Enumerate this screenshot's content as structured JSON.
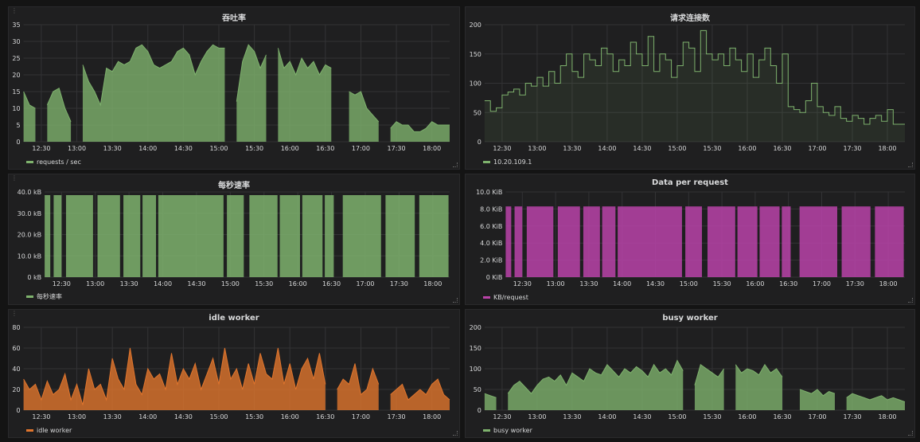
{
  "colors": {
    "green": "#7eb26d",
    "orange": "#e0752d",
    "purple": "#ba43a9"
  },
  "panels": [
    {
      "id": "p1",
      "title": "吞吐率",
      "legend": "requests / sec",
      "color": "#7eb26d",
      "type": "area",
      "yticks": [
        "0",
        "5",
        "10",
        "15",
        "20",
        "25",
        "30",
        "35"
      ],
      "ylim": [
        0,
        35
      ],
      "xticks": [
        "12:30",
        "13:00",
        "13:30",
        "14:00",
        "14:30",
        "15:00",
        "15:30",
        "16:00",
        "16:30",
        "17:00",
        "17:30",
        "18:00"
      ],
      "xrange": [
        "12:15",
        "18:15"
      ],
      "start": "12:15",
      "step_min": 5,
      "values": [
        15,
        11,
        10,
        null,
        11,
        15,
        16,
        10,
        6,
        null,
        23,
        18,
        15,
        11,
        22,
        21,
        24,
        23,
        24,
        28,
        29,
        27,
        23,
        22,
        23,
        24,
        27,
        28,
        26,
        20,
        24,
        27,
        29,
        28,
        28,
        null,
        12,
        24,
        29,
        27,
        22,
        26,
        null,
        28,
        22,
        24,
        20,
        25,
        22,
        24,
        20,
        23,
        22,
        null,
        null,
        15,
        14,
        15,
        10,
        8,
        6,
        null,
        4,
        6,
        5,
        5,
        3,
        3,
        4,
        6,
        5,
        5,
        5
      ]
    },
    {
      "id": "p2",
      "title": "请求连接数",
      "legend": "10.20.109.1",
      "color": "#7eb26d",
      "type": "line",
      "yticks": [
        "0",
        "50",
        "100",
        "150",
        "200"
      ],
      "ylim": [
        0,
        200
      ],
      "xticks": [
        "12:30",
        "13:00",
        "13:30",
        "14:00",
        "14:30",
        "15:00",
        "15:30",
        "16:00",
        "16:30",
        "17:00",
        "17:30",
        "18:00"
      ],
      "xrange": [
        "12:15",
        "18:15"
      ],
      "start": "12:15",
      "step_min": 5,
      "values": [
        70,
        52,
        58,
        80,
        85,
        90,
        80,
        100,
        95,
        110,
        95,
        120,
        100,
        130,
        150,
        120,
        110,
        150,
        140,
        130,
        160,
        150,
        120,
        140,
        130,
        170,
        150,
        130,
        180,
        120,
        150,
        140,
        110,
        130,
        170,
        160,
        120,
        190,
        150,
        140,
        150,
        130,
        160,
        140,
        120,
        150,
        110,
        140,
        160,
        130,
        100,
        150,
        60,
        55,
        50,
        70,
        100,
        60,
        50,
        45,
        60,
        40,
        35,
        45,
        40,
        30,
        40,
        45,
        35,
        55,
        30,
        30,
        30
      ]
    },
    {
      "id": "p3",
      "title": "每秒速率",
      "legend": "每秒速率",
      "color": "#7eb26d",
      "type": "blocks",
      "yticks": [
        "0 kB",
        "10.0 kB",
        "20.0 kB",
        "30.0 kB",
        "40.0 kB"
      ],
      "ylim": [
        0,
        40
      ],
      "xticks": [
        "12:30",
        "13:00",
        "13:30",
        "14:00",
        "14:30",
        "15:00",
        "15:30",
        "16:00",
        "16:30",
        "17:00",
        "17:30",
        "18:00"
      ],
      "xrange": [
        "12:15",
        "18:15"
      ],
      "value": 38.5,
      "segments": [
        [
          "12:15",
          "12:20"
        ],
        [
          "12:23",
          "12:30"
        ],
        [
          "12:34",
          "12:58"
        ],
        [
          "13:02",
          "13:22"
        ],
        [
          "13:25",
          "13:40"
        ],
        [
          "13:42",
          "13:54"
        ],
        [
          "13:56",
          "14:54"
        ],
        [
          "14:57",
          "15:12"
        ],
        [
          "15:17",
          "15:42"
        ],
        [
          "15:44",
          "16:02"
        ],
        [
          "16:04",
          "16:22"
        ],
        [
          "16:24",
          "16:32"
        ],
        [
          "16:40",
          "17:14"
        ],
        [
          "17:18",
          "17:44"
        ],
        [
          "17:48",
          "18:14"
        ]
      ]
    },
    {
      "id": "p4",
      "title": "Data per request",
      "legend": "KB/request",
      "color": "#ba43a9",
      "type": "blocks",
      "yticks": [
        "0 KiB",
        "2.0 KiB",
        "4.0 KiB",
        "6.0 KiB",
        "8.0 KiB",
        "10.0 KiB"
      ],
      "ylim": [
        0,
        10
      ],
      "xticks": [
        "12:30",
        "13:00",
        "13:30",
        "14:00",
        "14:30",
        "15:00",
        "15:30",
        "16:00",
        "16:30",
        "17:00",
        "17:30",
        "18:00"
      ],
      "xrange": [
        "12:15",
        "18:15"
      ],
      "value": 8.3,
      "segments": [
        [
          "12:15",
          "12:20"
        ],
        [
          "12:23",
          "12:30"
        ],
        [
          "12:34",
          "12:58"
        ],
        [
          "13:02",
          "13:22"
        ],
        [
          "13:25",
          "13:40"
        ],
        [
          "13:42",
          "13:54"
        ],
        [
          "13:56",
          "14:54"
        ],
        [
          "14:57",
          "15:12"
        ],
        [
          "15:17",
          "15:42"
        ],
        [
          "15:44",
          "16:02"
        ],
        [
          "16:04",
          "16:22"
        ],
        [
          "16:24",
          "16:32"
        ],
        [
          "16:40",
          "17:14"
        ],
        [
          "17:18",
          "17:44"
        ],
        [
          "17:48",
          "18:14"
        ]
      ]
    },
    {
      "id": "p5",
      "title": "idle worker",
      "legend": "idle worker",
      "color": "#e0752d",
      "type": "area",
      "yticks": [
        "0",
        "20",
        "40",
        "60",
        "80"
      ],
      "ylim": [
        0,
        80
      ],
      "xticks": [
        "12:30",
        "13:00",
        "13:30",
        "14:00",
        "14:30",
        "15:00",
        "15:30",
        "16:00",
        "16:30",
        "17:00",
        "17:30",
        "18:00"
      ],
      "xrange": [
        "12:15",
        "18:15"
      ],
      "start": "12:15",
      "step_min": 5,
      "values": [
        30,
        20,
        25,
        10,
        28,
        15,
        20,
        35,
        10,
        25,
        5,
        40,
        20,
        25,
        10,
        50,
        30,
        20,
        60,
        25,
        15,
        40,
        30,
        35,
        20,
        55,
        25,
        40,
        30,
        45,
        20,
        35,
        50,
        25,
        60,
        30,
        40,
        20,
        45,
        25,
        55,
        35,
        30,
        60,
        25,
        45,
        20,
        40,
        50,
        30,
        55,
        25,
        null,
        20,
        30,
        25,
        45,
        15,
        20,
        40,
        25,
        null,
        15,
        20,
        25,
        10,
        15,
        20,
        15,
        25,
        30,
        15,
        10
      ]
    },
    {
      "id": "p6",
      "title": "busy worker",
      "legend": "busy worker",
      "color": "#7eb26d",
      "type": "area",
      "yticks": [
        "0",
        "50",
        "100",
        "150",
        "200"
      ],
      "ylim": [
        0,
        200
      ],
      "xticks": [
        "12:30",
        "13:00",
        "13:30",
        "14:00",
        "14:30",
        "15:00",
        "15:30",
        "16:00",
        "16:30",
        "17:00",
        "17:30",
        "18:00"
      ],
      "xrange": [
        "12:15",
        "18:15"
      ],
      "start": "12:15",
      "step_min": 5,
      "values": [
        40,
        35,
        30,
        null,
        40,
        60,
        70,
        55,
        40,
        60,
        75,
        80,
        70,
        85,
        60,
        90,
        80,
        70,
        100,
        90,
        85,
        110,
        95,
        80,
        100,
        90,
        105,
        95,
        80,
        110,
        90,
        100,
        85,
        120,
        95,
        null,
        60,
        110,
        100,
        90,
        80,
        100,
        null,
        110,
        90,
        100,
        95,
        85,
        110,
        90,
        100,
        80,
        null,
        null,
        50,
        45,
        40,
        50,
        35,
        45,
        40,
        null,
        30,
        40,
        35,
        30,
        25,
        30,
        35,
        25,
        30,
        25,
        20
      ]
    }
  ]
}
